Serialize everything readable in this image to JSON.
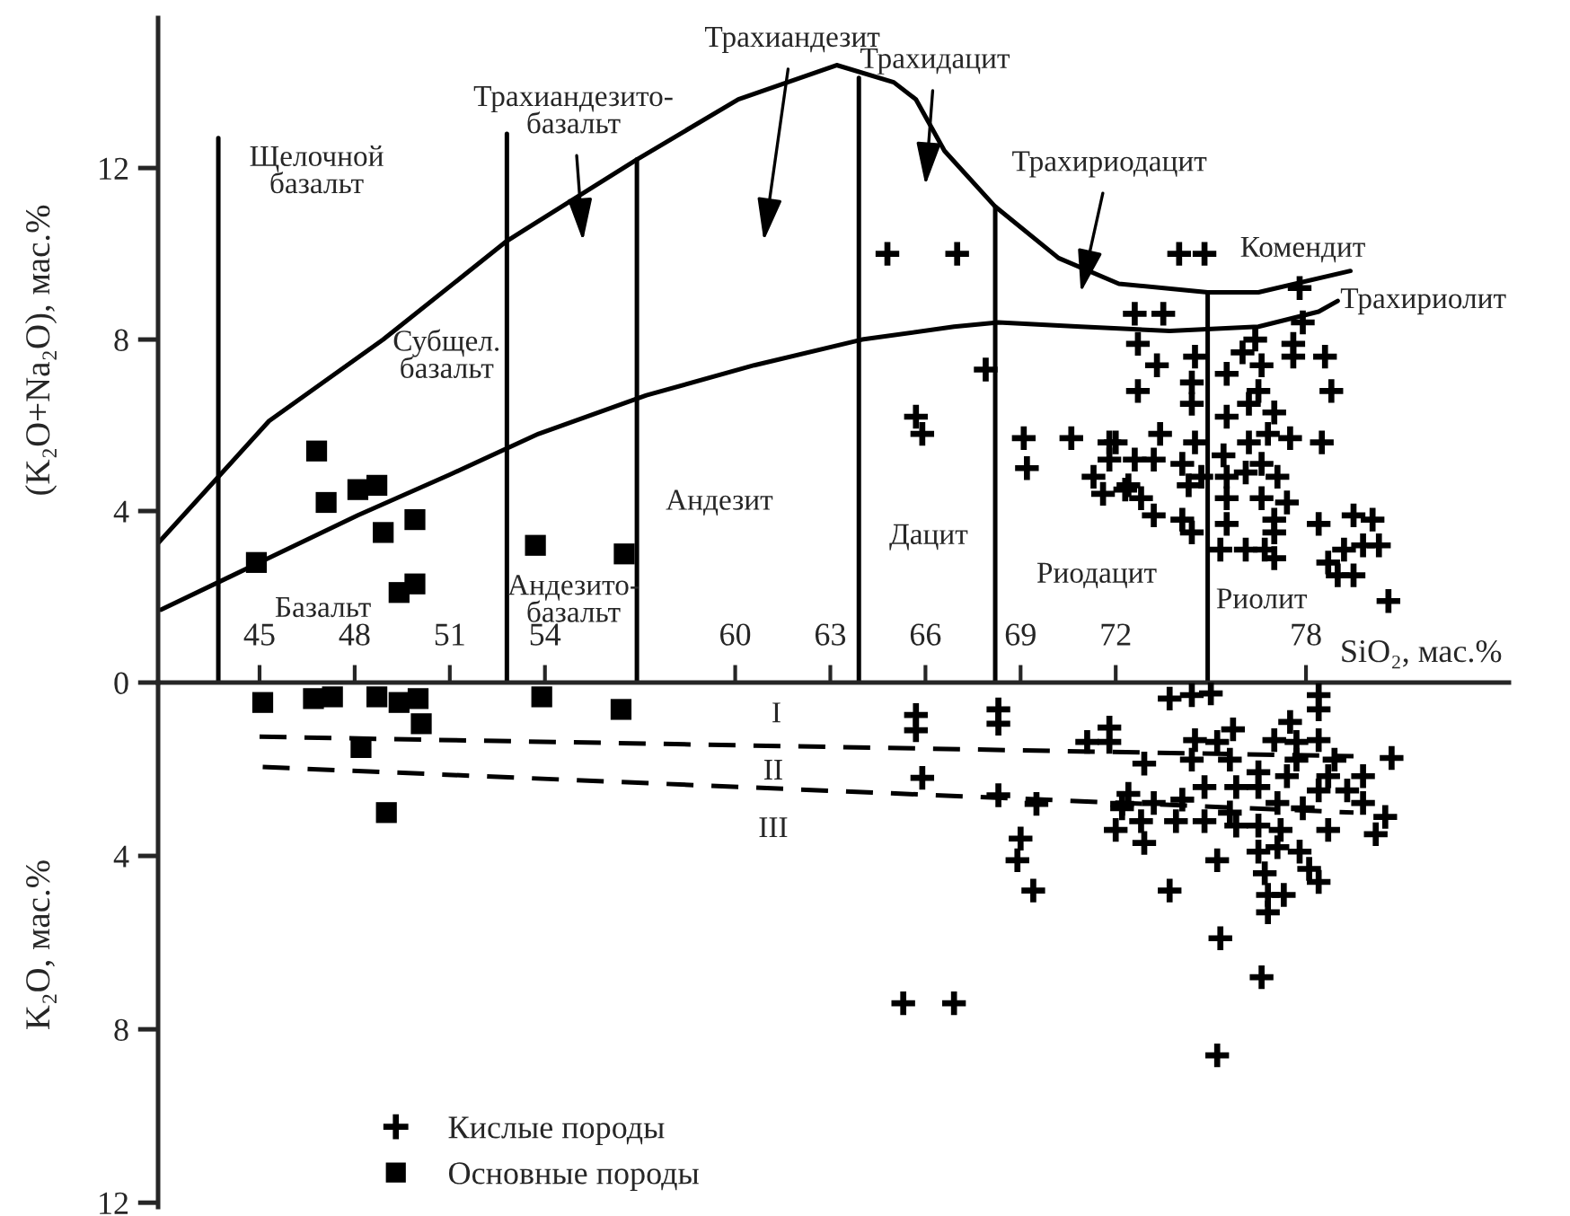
{
  "chart_data": [
    {
      "type": "scatter",
      "ylabel": "(K₂O+Na₂O), мас.%",
      "xlabel": "SiO₂, мас.%",
      "xlim": [
        41.8,
        84.4
      ],
      "ylim": [
        0,
        15.5
      ],
      "xticks": [
        45,
        48,
        51,
        54,
        60,
        63,
        66,
        69,
        72,
        78
      ],
      "yticks": [
        0,
        4,
        8,
        12
      ],
      "grid": false,
      "legend": false,
      "series": [
        {
          "type": "line",
          "color": "#000000",
          "marker": "none",
          "line_style": "solid",
          "x": [
            41.8,
            45.3,
            48.9,
            52.8,
            56.9,
            60.1,
            63.2,
            65.0,
            65.7,
            66.6,
            68.2,
            70.2,
            72.1,
            74.9,
            76.5,
            79.4
          ],
          "values": [
            3.25,
            6.1,
            8.0,
            10.3,
            12.2,
            13.6,
            14.4,
            14.0,
            13.6,
            12.4,
            11.1,
            9.9,
            9.3,
            9.1,
            9.1,
            9.6
          ]
        },
        {
          "type": "line",
          "color": "#000000",
          "marker": "none",
          "line_style": "solid",
          "x": [
            41.9,
            45.0,
            48.1,
            51.0,
            53.8,
            57.2,
            60.6,
            64.0,
            66.9,
            68.3,
            70.9,
            73.7,
            76.5,
            78.4,
            79.0
          ],
          "values": [
            1.7,
            2.8,
            3.9,
            4.85,
            5.8,
            6.7,
            7.4,
            8.0,
            8.3,
            8.4,
            8.3,
            8.2,
            8.3,
            8.65,
            8.9
          ]
        },
        {
          "type": "line",
          "color": "#000000",
          "marker": "none",
          "line_style": "solid",
          "x": [
            43.7,
            43.7
          ],
          "values": [
            0,
            12.7
          ]
        },
        {
          "type": "line",
          "color": "#000000",
          "marker": "none",
          "line_style": "solid",
          "x": [
            52.8,
            52.8
          ],
          "values": [
            0,
            12.8
          ]
        },
        {
          "type": "line",
          "color": "#000000",
          "marker": "none",
          "line_style": "solid",
          "x": [
            56.9,
            56.9
          ],
          "values": [
            0,
            12.2
          ]
        },
        {
          "type": "line",
          "color": "#000000",
          "marker": "none",
          "line_style": "solid",
          "x": [
            63.9,
            63.9
          ],
          "values": [
            0,
            14.1
          ]
        },
        {
          "type": "line",
          "color": "#000000",
          "marker": "none",
          "line_style": "solid",
          "x": [
            68.2,
            68.2
          ],
          "values": [
            0,
            11.1
          ]
        },
        {
          "type": "line",
          "color": "#000000",
          "marker": "none",
          "line_style": "solid",
          "x": [
            74.9,
            74.9
          ],
          "values": [
            0,
            9.1
          ]
        },
        {
          "type": "scatter",
          "color": "#000000",
          "marker": "square",
          "x": [
            46.8,
            47.1,
            48.1,
            48.7,
            49.9,
            48.9,
            44.9,
            49.9,
            49.4,
            53.7,
            56.5
          ],
          "values": [
            5.4,
            4.2,
            4.5,
            4.6,
            3.8,
            3.5,
            2.8,
            2.3,
            2.1,
            3.2,
            3.0
          ]
        },
        {
          "type": "scatter",
          "color": "#000000",
          "marker": "cross",
          "x": [
            64.8,
            67.0,
            67.9,
            65.7,
            65.9,
            69.1,
            69.2,
            70.6,
            71.8,
            71.8,
            71.3,
            71.6,
            72.3,
            74.0,
            74.8,
            77.8,
            77.9,
            72.6,
            73.5,
            72.7,
            73.3,
            72.7,
            74.5,
            74.4,
            74.4,
            75.5,
            76.0,
            76.4,
            76.6,
            77.6,
            77.6,
            78.6,
            78.8,
            76.5,
            76.2,
            77.0,
            75.5,
            76.8,
            77.5,
            78.5,
            73.4,
            74.5,
            76.2,
            72.0,
            72.6,
            73.2,
            74.1,
            74.7,
            75.4,
            75.5,
            76.1,
            76.6,
            77.1,
            72.4,
            72.8,
            73.2,
            74.3,
            75.5,
            76.6,
            77.4,
            74.1,
            74.4,
            75.5,
            77.0,
            77.0,
            78.4,
            79.5,
            80.1,
            75.3,
            76.1,
            76.7,
            77.0,
            79.2,
            79.8,
            80.3,
            78.7,
            79.0,
            79.5,
            80.6
          ],
          "values": [
            10.0,
            10.0,
            7.3,
            6.2,
            5.8,
            5.7,
            5.0,
            5.7,
            5.6,
            5.2,
            4.8,
            4.4,
            4.5,
            10.0,
            10.0,
            9.2,
            8.4,
            8.6,
            8.6,
            7.9,
            7.4,
            6.8,
            7.6,
            7.0,
            6.5,
            7.2,
            7.7,
            8.0,
            7.4,
            7.9,
            7.6,
            7.6,
            6.8,
            6.8,
            6.5,
            6.3,
            6.2,
            5.8,
            5.7,
            5.6,
            5.8,
            5.6,
            5.6,
            5.6,
            5.2,
            5.2,
            5.1,
            4.8,
            5.3,
            4.8,
            4.9,
            5.1,
            4.8,
            4.6,
            4.3,
            3.9,
            4.6,
            4.3,
            4.3,
            4.2,
            3.8,
            3.5,
            3.7,
            3.8,
            3.5,
            3.7,
            3.9,
            3.8,
            3.1,
            3.1,
            3.1,
            2.9,
            3.1,
            3.2,
            3.2,
            2.8,
            2.5,
            2.5,
            1.9
          ]
        }
      ],
      "annotations": [
        "Щелочной\nбазальт",
        "Трахиандезито-\nбазальт",
        "Трахиандезит",
        "Трахидацит",
        "Трахириодацит",
        "Комендит",
        "Трахириолит",
        "Субщел.\nбазальт",
        "Андезит",
        "Дацит",
        "Риодацит",
        "Риолит",
        "Базальт",
        "Андезито-\nбазальт"
      ]
    },
    {
      "type": "scatter",
      "ylabel": "K₂O, мас.%",
      "xlim": [
        41.8,
        84.4
      ],
      "ylim": [
        12.1,
        0
      ],
      "yticks": [
        4,
        8,
        12
      ],
      "tick_labels": "y",
      "grid": false,
      "legend": "bottom left",
      "series": [
        {
          "type": "line",
          "color": "#000000",
          "marker": "none",
          "line_style": "dashed",
          "x": [
            45.0,
            79.5
          ],
          "values": [
            1.25,
            1.7
          ]
        },
        {
          "type": "line",
          "color": "#000000",
          "marker": "none",
          "line_style": "dashed",
          "x": [
            45.1,
            79.5
          ],
          "values": [
            1.95,
            3.0
          ]
        },
        {
          "type": "scatter",
          "name": "Кислые породы",
          "color": "#000000",
          "marker": "cross",
          "x": [
            65.7,
            65.7,
            68.3,
            68.3,
            71.1,
            71.8,
            71.8,
            65.9,
            68.3,
            69.5,
            72.2,
            72.0,
            69.0,
            68.9,
            69.4,
            65.3,
            66.9,
            73.7,
            74.4,
            75.0,
            78.4,
            78.4,
            77.5,
            75.7,
            74.5,
            75.2,
            77.0,
            77.7,
            78.4,
            80.7,
            72.9,
            74.4,
            75.6,
            77.7,
            78.9,
            76.5,
            77.4,
            78.7,
            79.8,
            74.8,
            75.8,
            76.5,
            78.4,
            79.3,
            72.4,
            73.2,
            74.1,
            77.1,
            77.9,
            79.8,
            72.2,
            73.9,
            74.8,
            75.6,
            75.8,
            76.5,
            77.2,
            78.7,
            80.5,
            80.2,
            72.8,
            72.9,
            77.1,
            76.5,
            77.8,
            75.2,
            76.7,
            78.1,
            78.4,
            76.8,
            77.3,
            76.8,
            73.7,
            75.3,
            76.6,
            75.2
          ],
          "values": [
            0.75,
            1.1,
            0.62,
            0.95,
            1.37,
            1.04,
            1.37,
            2.2,
            2.6,
            2.8,
            2.8,
            3.4,
            3.6,
            4.1,
            4.8,
            7.4,
            7.4,
            0.37,
            0.29,
            0.25,
            0.29,
            0.62,
            0.91,
            1.08,
            1.33,
            1.37,
            1.33,
            1.37,
            1.33,
            1.74,
            1.87,
            1.78,
            1.78,
            1.78,
            1.78,
            2.07,
            2.16,
            2.16,
            2.16,
            2.41,
            2.41,
            2.41,
            2.49,
            2.49,
            2.57,
            2.78,
            2.7,
            2.78,
            2.9,
            2.78,
            2.9,
            3.2,
            3.2,
            3.0,
            3.3,
            3.3,
            3.4,
            3.4,
            3.1,
            3.5,
            3.2,
            3.7,
            3.8,
            3.9,
            3.9,
            4.1,
            4.4,
            4.3,
            4.6,
            4.9,
            4.9,
            5.3,
            4.8,
            5.9,
            6.8,
            8.6
          ]
        },
        {
          "type": "scatter",
          "name": "Основные породы",
          "color": "#000000",
          "marker": "square",
          "x": [
            45.1,
            46.7,
            47.3,
            48.7,
            49.4,
            50.0,
            50.1,
            48.2,
            49.0,
            53.9,
            56.4
          ],
          "values": [
            0.46,
            0.37,
            0.33,
            0.33,
            0.46,
            0.37,
            0.95,
            1.5,
            3.0,
            0.33,
            0.62
          ]
        }
      ],
      "annotations": [
        "I",
        "II",
        "III"
      ]
    }
  ]
}
